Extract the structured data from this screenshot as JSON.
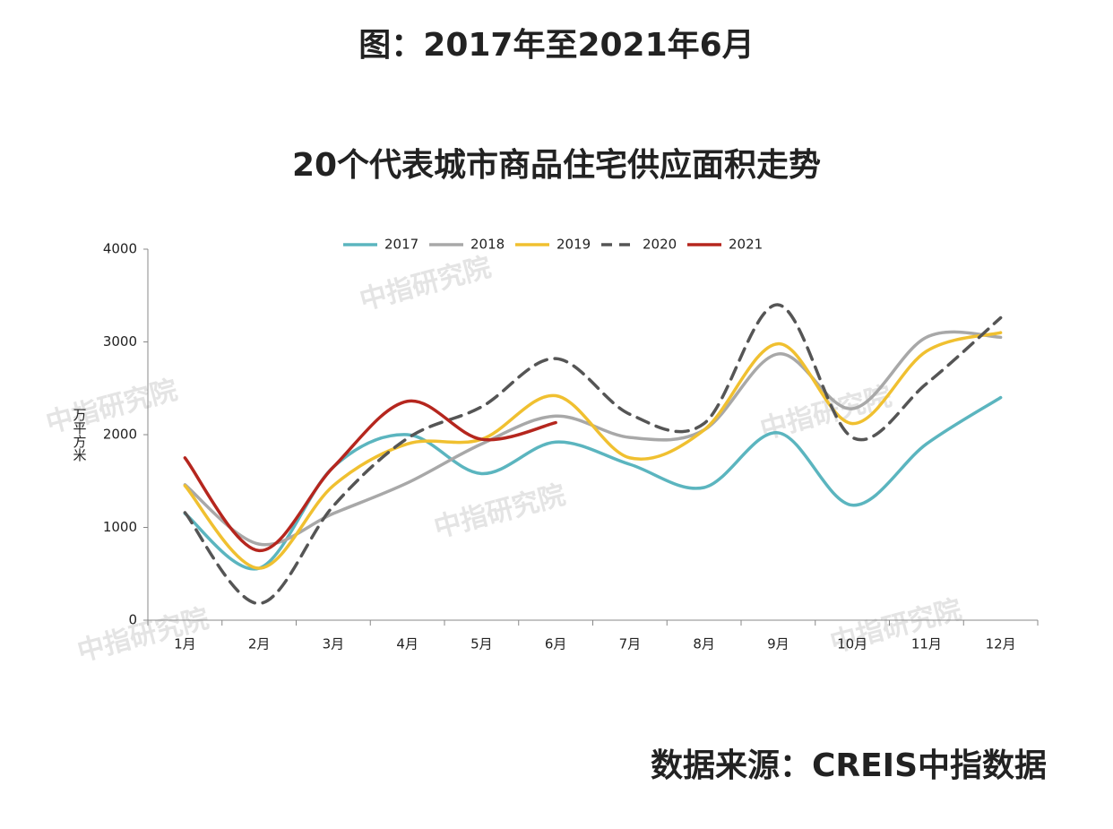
{
  "chart_data": {
    "type": "line",
    "title": "图：2017年至2021年6月",
    "subtitle": "20个代表城市商品住宅供应面积走势",
    "source": "数据来源：CREIS中指数据",
    "watermark": "中指研究院",
    "ylabel": "万平方米",
    "categories": [
      "1月",
      "2月",
      "3月",
      "4月",
      "5月",
      "6月",
      "7月",
      "8月",
      "9月",
      "10月",
      "11月",
      "12月"
    ],
    "series": [
      {
        "name": "2017",
        "color": "#5bb5bf",
        "values": [
          1150,
          560,
          1650,
          2000,
          1580,
          1920,
          1680,
          1430,
          2020,
          1240,
          1900,
          2400
        ]
      },
      {
        "name": "2018",
        "color": "#a8a8a8",
        "values": [
          1460,
          820,
          1150,
          1480,
          1900,
          2200,
          1970,
          2050,
          2870,
          2280,
          3050,
          3050
        ]
      },
      {
        "name": "2019",
        "color": "#f0c030",
        "values": [
          1450,
          560,
          1450,
          1900,
          1950,
          2420,
          1750,
          2050,
          2980,
          2120,
          2900,
          3100
        ]
      },
      {
        "name": "2020",
        "color": "#555555",
        "dashed": true,
        "values": [
          1160,
          180,
          1230,
          1960,
          2300,
          2820,
          2220,
          2120,
          3400,
          1970,
          2550,
          3260
        ]
      },
      {
        "name": "2021",
        "color": "#b5261e",
        "values": [
          1750,
          750,
          1650,
          2360,
          1950,
          2130,
          null,
          null,
          null,
          null,
          null,
          null
        ]
      }
    ],
    "ylim": [
      0,
      4000
    ],
    "yticks": [
      0,
      1000,
      2000,
      3000,
      4000
    ]
  }
}
